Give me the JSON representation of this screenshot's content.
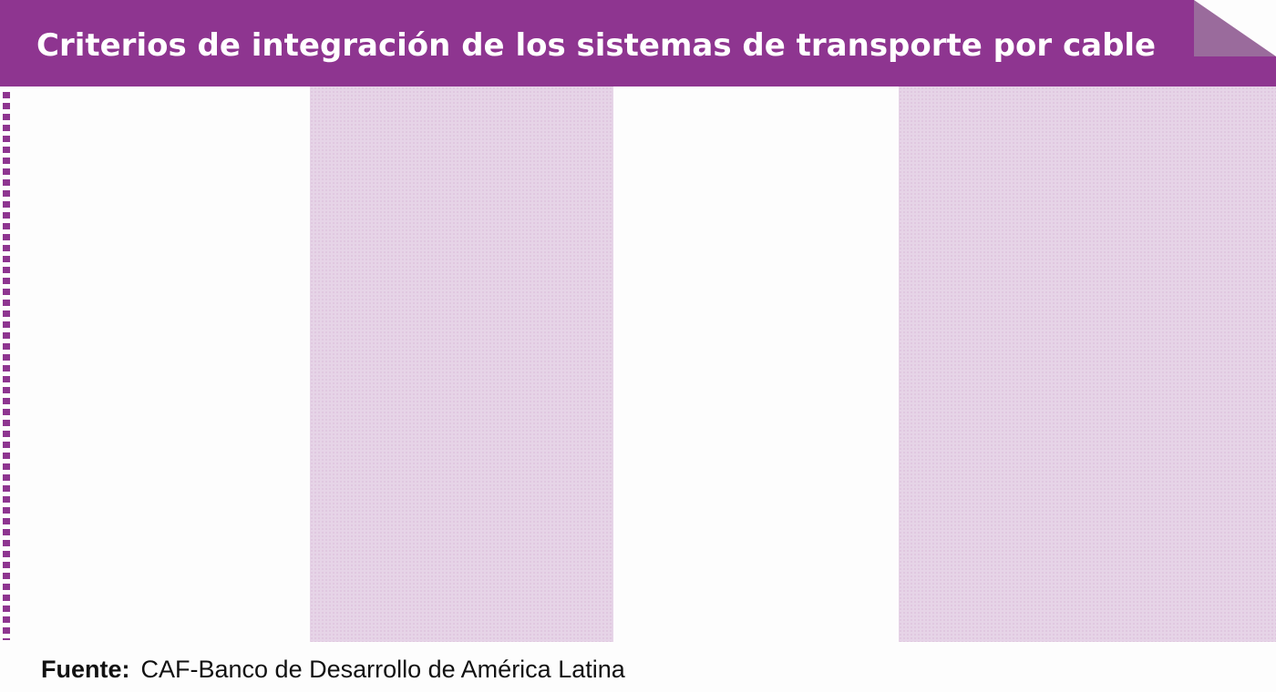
{
  "header": {
    "title": "Criterios de integración de los sistemas de transporte por cable"
  },
  "footer": {
    "source_label": "Fuente:",
    "source_value": "CAF-Banco de Desarrollo de América Latina"
  },
  "colors": {
    "accent": "#8e3590",
    "band": "#e6d4e7",
    "fold": "#9a6b9c"
  }
}
